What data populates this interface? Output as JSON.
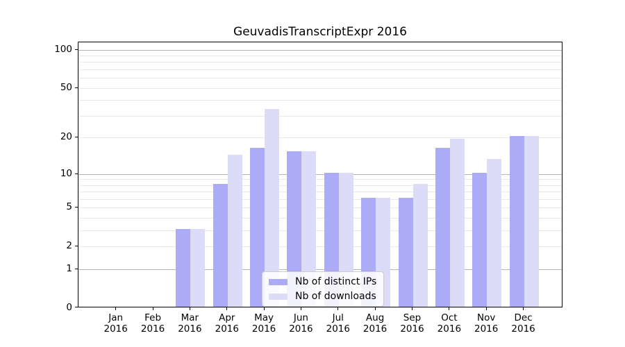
{
  "chart_data": {
    "type": "bar",
    "title": "GeuvadisTranscriptExpr 2016",
    "categories": [
      "Jan",
      "Feb",
      "Mar",
      "Apr",
      "May",
      "Jun",
      "Jul",
      "Aug",
      "Sep",
      "Oct",
      "Nov",
      "Dec"
    ],
    "category_year": "2016",
    "series": [
      {
        "name": "Nb of distinct IPs",
        "color": "#acacf6",
        "values": [
          0,
          0,
          3,
          8,
          16,
          15,
          10,
          6,
          6,
          16,
          10,
          20
        ]
      },
      {
        "name": "Nb of downloads",
        "color": "#dcdcf8",
        "values": [
          0,
          0,
          3,
          14,
          33,
          15,
          10,
          6,
          8,
          19,
          13,
          20
        ]
      }
    ],
    "y_axis": {
      "scale": "log1p",
      "ticks": [
        0,
        1,
        2,
        5,
        10,
        20,
        50,
        100
      ],
      "major_gridlines": [
        1,
        10,
        100
      ],
      "minor_gridlines": [
        3,
        4,
        6,
        7,
        8,
        9,
        30,
        40,
        60,
        70,
        80,
        90
      ],
      "max": 100
    },
    "legend_position": "lower center",
    "grid": true
  },
  "colors": {
    "grid_major": "#b3b3b3",
    "grid_minor": "#e9e9e9",
    "axis": "#000000",
    "background": "#ffffff",
    "legend_border": "#cccccc"
  }
}
